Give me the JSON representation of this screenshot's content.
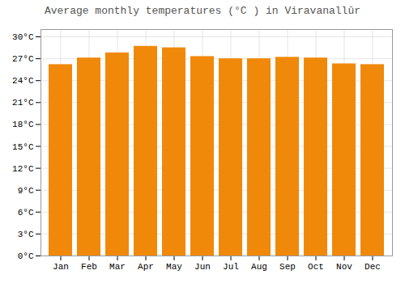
{
  "chart_data": {
    "type": "bar",
    "title": "Average monthly temperatures (°C ) in Viravanallūr",
    "categories": [
      "Jan",
      "Feb",
      "Mar",
      "Apr",
      "May",
      "Jun",
      "Jul",
      "Aug",
      "Sep",
      "Oct",
      "Nov",
      "Dec"
    ],
    "values": [
      26.2,
      27.1,
      27.8,
      28.7,
      28.5,
      27.3,
      27.0,
      27.0,
      27.2,
      27.1,
      26.3,
      26.2
    ],
    "color": "#F0890A",
    "ylim": [
      0,
      31
    ],
    "yticks": [
      {
        "value": 0,
        "label": "0°C"
      },
      {
        "value": 3,
        "label": "3°C"
      },
      {
        "value": 6,
        "label": "6°C"
      },
      {
        "value": 9,
        "label": "9°C"
      },
      {
        "value": 12,
        "label": "12°C"
      },
      {
        "value": 15,
        "label": "15°C"
      },
      {
        "value": 18,
        "label": "18°C"
      },
      {
        "value": 21,
        "label": "21°C"
      },
      {
        "value": 24,
        "label": "24°C"
      },
      {
        "value": 27,
        "label": "27°C"
      },
      {
        "value": 30,
        "label": "30°C"
      }
    ],
    "grid": true
  }
}
